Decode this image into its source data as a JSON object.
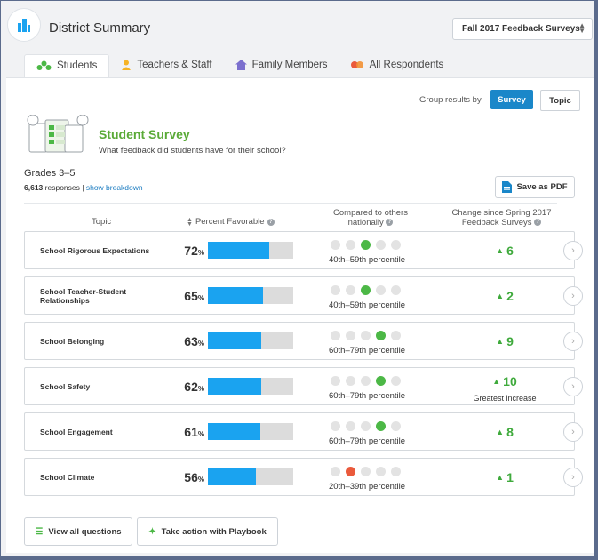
{
  "app": {
    "title": "District Summary"
  },
  "survey_select": {
    "value": "Fall 2017 Feedback Surveys"
  },
  "tabs": [
    {
      "label": "Students",
      "icon": "students-icon",
      "active": true
    },
    {
      "label": "Teachers & Staff",
      "icon": "teacher-icon"
    },
    {
      "label": "Family Members",
      "icon": "house-icon"
    },
    {
      "label": "All Respondents",
      "icon": "respondents-icon"
    }
  ],
  "group": {
    "label": "Group results by",
    "survey": "Survey",
    "topic": "Topic"
  },
  "survey": {
    "title": "Student Survey",
    "subtitle": "What feedback did students have for their school?"
  },
  "grades": "Grades 3–5",
  "responses": {
    "count": "6,613",
    "label": "responses",
    "separator": "|",
    "link": "show breakdown"
  },
  "pdf_button": "Save as PDF",
  "columns": {
    "topic": "Topic",
    "percent_favorable": "Percent Favorable",
    "compared": "Compared to others nationally",
    "change": "Change since Spring 2017 Feedback Surveys"
  },
  "percent_suffix": "%",
  "rows": [
    {
      "topic": "School Rigorous Expectations",
      "percent": "72",
      "fill": 0.72,
      "dot": 3,
      "dot_color": "green",
      "percentile": "40th–59th percentile",
      "change": "6",
      "note": ""
    },
    {
      "topic": "School Teacher-Student Relationships",
      "percent": "65",
      "fill": 0.65,
      "dot": 3,
      "dot_color": "green",
      "percentile": "40th–59th percentile",
      "change": "2",
      "note": ""
    },
    {
      "topic": "School Belonging",
      "percent": "63",
      "fill": 0.63,
      "dot": 4,
      "dot_color": "green",
      "percentile": "60th–79th percentile",
      "change": "9",
      "note": ""
    },
    {
      "topic": "School Safety",
      "percent": "62",
      "fill": 0.62,
      "dot": 4,
      "dot_color": "green",
      "percentile": "60th–79th percentile",
      "change": "10",
      "note": "Greatest increase"
    },
    {
      "topic": "School Engagement",
      "percent": "61",
      "fill": 0.61,
      "dot": 4,
      "dot_color": "green",
      "percentile": "60th–79th percentile",
      "change": "8",
      "note": ""
    },
    {
      "topic": "School Climate",
      "percent": "56",
      "fill": 0.56,
      "dot": 2,
      "dot_color": "red",
      "percentile": "20th–39th percentile",
      "change": "1",
      "note": ""
    }
  ],
  "footer": {
    "view_all": "View all questions",
    "take_action": "Take action with Playbook"
  },
  "colors": {
    "accent": "#1a87c9",
    "bar": "#1aa3f0",
    "green": "#4cb846",
    "red": "#ea5a3c",
    "title_green": "#5aaa37"
  }
}
